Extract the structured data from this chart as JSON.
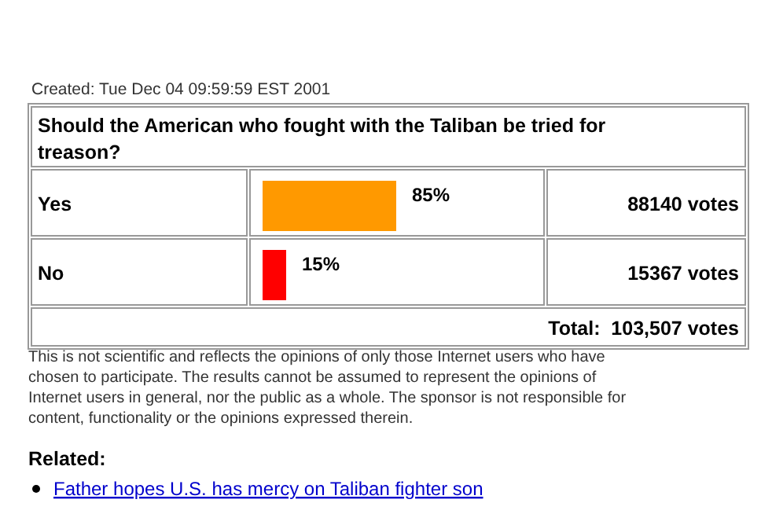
{
  "chart_data": {
    "type": "bar",
    "orientation": "horizontal",
    "title": "Should the American who fought with the Taliban be tried for treason?",
    "subtitle": "Created: Tue Dec 04 09:59:59 EST 2001",
    "categories": [
      "Yes",
      "No"
    ],
    "values": [
      85,
      15
    ],
    "colors": [
      "#ff9900",
      "#ff0000"
    ],
    "value_labels": [
      "85%",
      "15%"
    ],
    "tick_labels": "y",
    "annotations": [
      "88140 votes",
      "15367 votes",
      "Total:  103,507 votes",
      "This is not scientific and reflects the opinions of only those Internet users who have chosen to participate. The results cannot be assumed to represent the opinions of Internet users in general, nor the public as a whole. The sponsor is not responsible for content, functionality or the opinions expressed therein.",
      "Related:",
      "Father hopes U.S. has mercy on Taliban fighter son"
    ]
  }
}
